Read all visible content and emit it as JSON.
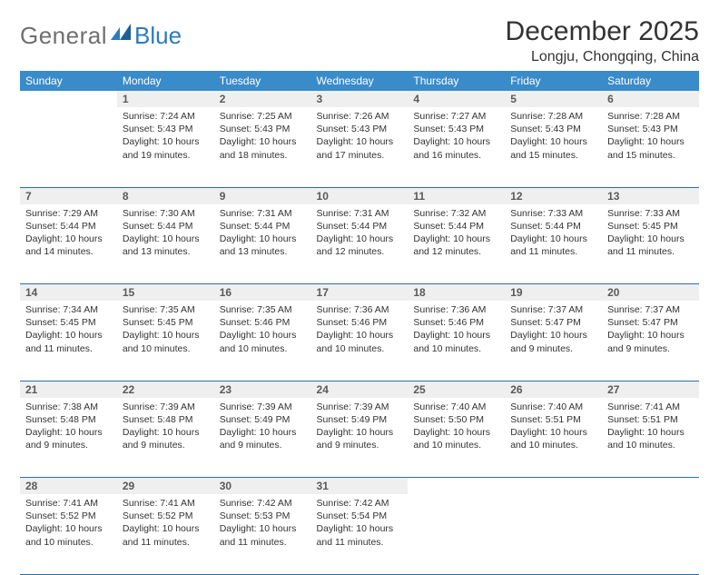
{
  "brand": {
    "part1": "General",
    "part2": "Blue"
  },
  "title": "December 2025",
  "location": "Longju, Chongqing, China",
  "colors": {
    "header_bg": "#3a8bc9",
    "header_text": "#ffffff",
    "rule": "#2d6fa3",
    "daynum_bg": "#efefef",
    "logo_gray": "#6f6f6f",
    "logo_blue": "#2b7bbf"
  },
  "weekdays": [
    "Sunday",
    "Monday",
    "Tuesday",
    "Wednesday",
    "Thursday",
    "Friday",
    "Saturday"
  ],
  "weeks": [
    [
      null,
      {
        "n": "1",
        "sr": "Sunrise: 7:24 AM",
        "ss": "Sunset: 5:43 PM",
        "dl": "Daylight: 10 hours and 19 minutes."
      },
      {
        "n": "2",
        "sr": "Sunrise: 7:25 AM",
        "ss": "Sunset: 5:43 PM",
        "dl": "Daylight: 10 hours and 18 minutes."
      },
      {
        "n": "3",
        "sr": "Sunrise: 7:26 AM",
        "ss": "Sunset: 5:43 PM",
        "dl": "Daylight: 10 hours and 17 minutes."
      },
      {
        "n": "4",
        "sr": "Sunrise: 7:27 AM",
        "ss": "Sunset: 5:43 PM",
        "dl": "Daylight: 10 hours and 16 minutes."
      },
      {
        "n": "5",
        "sr": "Sunrise: 7:28 AM",
        "ss": "Sunset: 5:43 PM",
        "dl": "Daylight: 10 hours and 15 minutes."
      },
      {
        "n": "6",
        "sr": "Sunrise: 7:28 AM",
        "ss": "Sunset: 5:43 PM",
        "dl": "Daylight: 10 hours and 15 minutes."
      }
    ],
    [
      {
        "n": "7",
        "sr": "Sunrise: 7:29 AM",
        "ss": "Sunset: 5:44 PM",
        "dl": "Daylight: 10 hours and 14 minutes."
      },
      {
        "n": "8",
        "sr": "Sunrise: 7:30 AM",
        "ss": "Sunset: 5:44 PM",
        "dl": "Daylight: 10 hours and 13 minutes."
      },
      {
        "n": "9",
        "sr": "Sunrise: 7:31 AM",
        "ss": "Sunset: 5:44 PM",
        "dl": "Daylight: 10 hours and 13 minutes."
      },
      {
        "n": "10",
        "sr": "Sunrise: 7:31 AM",
        "ss": "Sunset: 5:44 PM",
        "dl": "Daylight: 10 hours and 12 minutes."
      },
      {
        "n": "11",
        "sr": "Sunrise: 7:32 AM",
        "ss": "Sunset: 5:44 PM",
        "dl": "Daylight: 10 hours and 12 minutes."
      },
      {
        "n": "12",
        "sr": "Sunrise: 7:33 AM",
        "ss": "Sunset: 5:44 PM",
        "dl": "Daylight: 10 hours and 11 minutes."
      },
      {
        "n": "13",
        "sr": "Sunrise: 7:33 AM",
        "ss": "Sunset: 5:45 PM",
        "dl": "Daylight: 10 hours and 11 minutes."
      }
    ],
    [
      {
        "n": "14",
        "sr": "Sunrise: 7:34 AM",
        "ss": "Sunset: 5:45 PM",
        "dl": "Daylight: 10 hours and 11 minutes."
      },
      {
        "n": "15",
        "sr": "Sunrise: 7:35 AM",
        "ss": "Sunset: 5:45 PM",
        "dl": "Daylight: 10 hours and 10 minutes."
      },
      {
        "n": "16",
        "sr": "Sunrise: 7:35 AM",
        "ss": "Sunset: 5:46 PM",
        "dl": "Daylight: 10 hours and 10 minutes."
      },
      {
        "n": "17",
        "sr": "Sunrise: 7:36 AM",
        "ss": "Sunset: 5:46 PM",
        "dl": "Daylight: 10 hours and 10 minutes."
      },
      {
        "n": "18",
        "sr": "Sunrise: 7:36 AM",
        "ss": "Sunset: 5:46 PM",
        "dl": "Daylight: 10 hours and 10 minutes."
      },
      {
        "n": "19",
        "sr": "Sunrise: 7:37 AM",
        "ss": "Sunset: 5:47 PM",
        "dl": "Daylight: 10 hours and 9 minutes."
      },
      {
        "n": "20",
        "sr": "Sunrise: 7:37 AM",
        "ss": "Sunset: 5:47 PM",
        "dl": "Daylight: 10 hours and 9 minutes."
      }
    ],
    [
      {
        "n": "21",
        "sr": "Sunrise: 7:38 AM",
        "ss": "Sunset: 5:48 PM",
        "dl": "Daylight: 10 hours and 9 minutes."
      },
      {
        "n": "22",
        "sr": "Sunrise: 7:39 AM",
        "ss": "Sunset: 5:48 PM",
        "dl": "Daylight: 10 hours and 9 minutes."
      },
      {
        "n": "23",
        "sr": "Sunrise: 7:39 AM",
        "ss": "Sunset: 5:49 PM",
        "dl": "Daylight: 10 hours and 9 minutes."
      },
      {
        "n": "24",
        "sr": "Sunrise: 7:39 AM",
        "ss": "Sunset: 5:49 PM",
        "dl": "Daylight: 10 hours and 9 minutes."
      },
      {
        "n": "25",
        "sr": "Sunrise: 7:40 AM",
        "ss": "Sunset: 5:50 PM",
        "dl": "Daylight: 10 hours and 10 minutes."
      },
      {
        "n": "26",
        "sr": "Sunrise: 7:40 AM",
        "ss": "Sunset: 5:51 PM",
        "dl": "Daylight: 10 hours and 10 minutes."
      },
      {
        "n": "27",
        "sr": "Sunrise: 7:41 AM",
        "ss": "Sunset: 5:51 PM",
        "dl": "Daylight: 10 hours and 10 minutes."
      }
    ],
    [
      {
        "n": "28",
        "sr": "Sunrise: 7:41 AM",
        "ss": "Sunset: 5:52 PM",
        "dl": "Daylight: 10 hours and 10 minutes."
      },
      {
        "n": "29",
        "sr": "Sunrise: 7:41 AM",
        "ss": "Sunset: 5:52 PM",
        "dl": "Daylight: 10 hours and 11 minutes."
      },
      {
        "n": "30",
        "sr": "Sunrise: 7:42 AM",
        "ss": "Sunset: 5:53 PM",
        "dl": "Daylight: 10 hours and 11 minutes."
      },
      {
        "n": "31",
        "sr": "Sunrise: 7:42 AM",
        "ss": "Sunset: 5:54 PM",
        "dl": "Daylight: 10 hours and 11 minutes."
      },
      null,
      null,
      null
    ]
  ]
}
